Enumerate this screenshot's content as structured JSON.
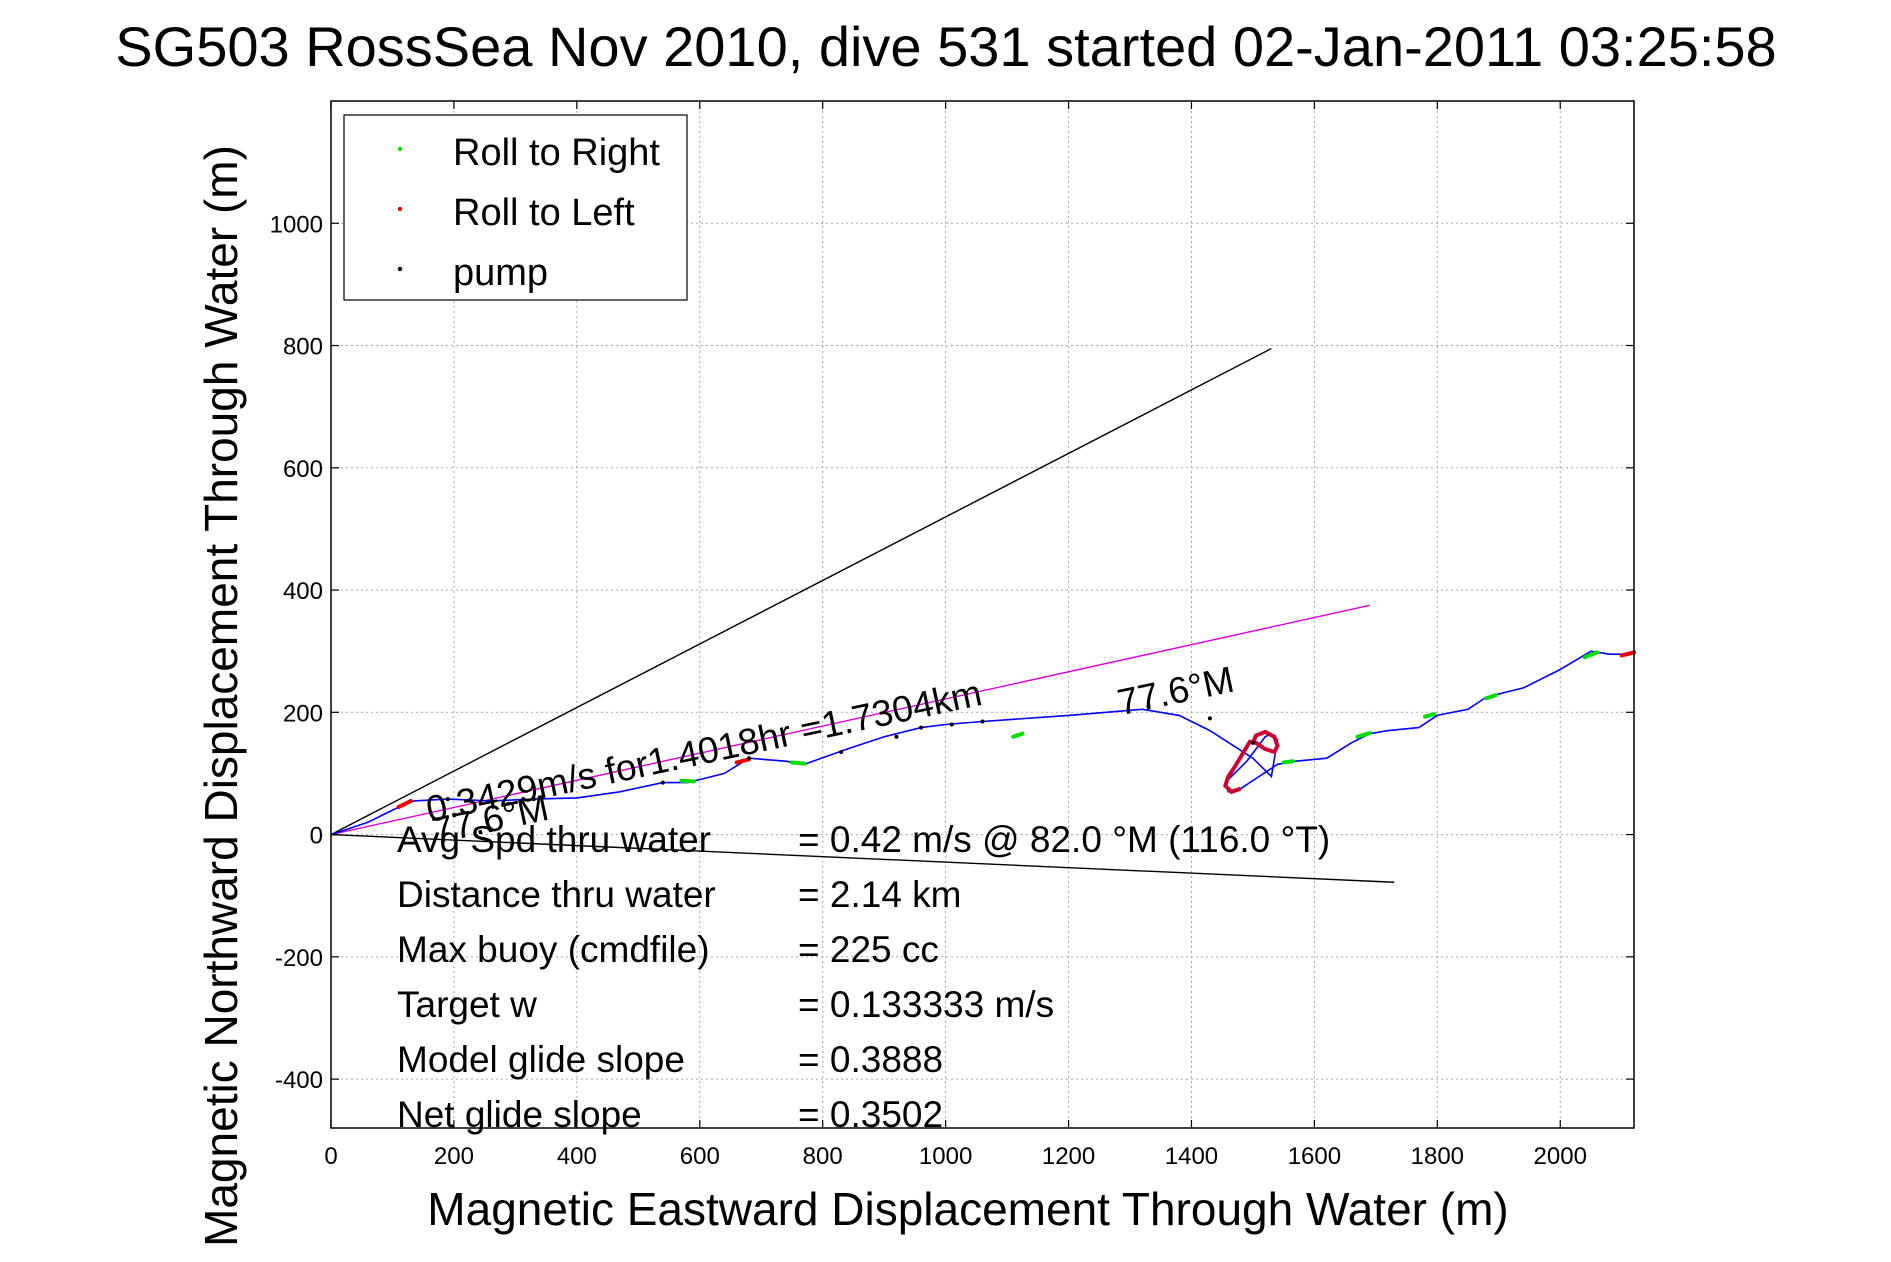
{
  "chart_data": {
    "type": "line",
    "title": "SG503 RossSea Nov 2010, dive 531 started 02-Jan-2011 03:25:58",
    "xlabel": "Magnetic Eastward Displacement Through Water (m)",
    "ylabel": "Magnetic Northward Displacement Through Water (m)",
    "xlim": [
      0,
      2120
    ],
    "ylim": [
      -480,
      1200
    ],
    "xticks": [
      0,
      200,
      400,
      600,
      800,
      1000,
      1200,
      1400,
      1600,
      1800,
      2000
    ],
    "yticks": [
      -400,
      -200,
      0,
      200,
      400,
      600,
      800,
      1000
    ],
    "xtick_labels": [
      "0",
      "200",
      "400",
      "600",
      "800",
      "1000",
      "1200",
      "1400",
      "1600",
      "1800",
      "2000"
    ],
    "ytick_labels": [
      "-400",
      "-200",
      "0",
      "200",
      "400",
      "600",
      "800",
      "1000"
    ],
    "grid": true,
    "legend_position": "top-left",
    "legend": [
      {
        "label": "Roll to Right",
        "color": "#00dd00"
      },
      {
        "label": "Roll to Left",
        "color": "#ee0000"
      },
      {
        "label": "pump",
        "color": "#000000"
      }
    ],
    "series": [
      {
        "role": "track",
        "color": "#0000ff",
        "x": [
          0,
          60,
          110,
          135,
          190,
          260,
          330,
          400,
          470,
          540,
          580,
          640,
          680,
          740,
          770,
          840,
          900,
          960,
          1000,
          1060,
          1200,
          1320,
          1380,
          1430,
          1500,
          1530,
          1540,
          1530,
          1520,
          1505,
          1490,
          1470,
          1455,
          1460,
          1480,
          1510,
          1540,
          1570,
          1620,
          1660,
          1690,
          1720,
          1770,
          1800,
          1850,
          1880,
          1940,
          2000,
          2050,
          2080,
          2110,
          2120
        ],
        "y": [
          0,
          20,
          45,
          55,
          58,
          55,
          58,
          60,
          70,
          85,
          85,
          100,
          125,
          120,
          115,
          140,
          160,
          175,
          180,
          185,
          195,
          205,
          195,
          170,
          125,
          95,
          155,
          165,
          160,
          140,
          120,
          100,
          85,
          70,
          75,
          95,
          115,
          120,
          125,
          150,
          165,
          170,
          175,
          195,
          205,
          225,
          240,
          270,
          300,
          295,
          295,
          300
        ]
      },
      {
        "role": "roll-right",
        "color": "#00dd00",
        "x": [
          570,
          590,
          750,
          770,
          1110,
          1125,
          1550,
          1565,
          1670,
          1690,
          1780,
          1795,
          1880,
          1895,
          2040,
          2060
        ],
        "y": [
          88,
          87,
          118,
          116,
          160,
          165,
          118,
          120,
          160,
          166,
          193,
          197,
          223,
          228,
          290,
          298
        ]
      },
      {
        "role": "roll-left",
        "color": "#ee0000",
        "x": [
          110,
          130,
          660,
          680,
          2100,
          2120
        ],
        "y": [
          45,
          55,
          118,
          123,
          293,
          298
        ]
      },
      {
        "role": "pump",
        "color": "#000000",
        "x": [
          190,
          330,
          540,
          680,
          830,
          920,
          960,
          1010,
          1060,
          1330,
          1430,
          1500
        ],
        "y": [
          58,
          58,
          85,
          125,
          135,
          160,
          175,
          180,
          185,
          210,
          190,
          150
        ]
      },
      {
        "role": "loop-red",
        "color": "#cc0033",
        "x": [
          1500,
          1505,
          1520,
          1535,
          1540,
          1535,
          1520,
          1505,
          1495,
          1470,
          1460,
          1455,
          1465,
          1480
        ],
        "y": [
          150,
          162,
          168,
          160,
          145,
          135,
          140,
          150,
          152,
          110,
          95,
          80,
          70,
          75
        ]
      }
    ],
    "reference_lines": [
      {
        "role": "black-upper",
        "color": "#000000",
        "x": [
          0,
          1530
        ],
        "y": [
          0,
          795
        ]
      },
      {
        "role": "black-lower",
        "color": "#000000",
        "x": [
          0,
          1730
        ],
        "y": [
          0,
          -78
        ]
      },
      {
        "role": "magenta",
        "color": "#dd00dd",
        "x": [
          0,
          1690
        ],
        "y": [
          0,
          375
        ]
      }
    ],
    "annotations": [
      {
        "text": "0.3429m/s for1.4018hr =1.7304km",
        "x": 160,
        "y": 20,
        "rotation_deg": -12
      },
      {
        "text": "77.6°M",
        "x": 170,
        "y": -15,
        "rotation_deg": -12
      },
      {
        "text": "77.6°M",
        "x": 1285,
        "y": 195,
        "rotation_deg": -12
      }
    ],
    "stats": [
      {
        "label": "Avg Spd thru water",
        "value": "=  0.42 m/s @  82.0 °M (116.0 °T)"
      },
      {
        "label": "Distance thru water",
        "value": "=  2.14 km"
      },
      {
        "label": "Max buoy (cmdfile)",
        "value": "= 225 cc"
      },
      {
        "label": "Target w",
        "value": "= 0.133333 m/s"
      },
      {
        "label": "Model glide slope",
        "value": "= 0.3888"
      },
      {
        "label": "Net glide slope",
        "value": "= 0.3502"
      }
    ]
  }
}
